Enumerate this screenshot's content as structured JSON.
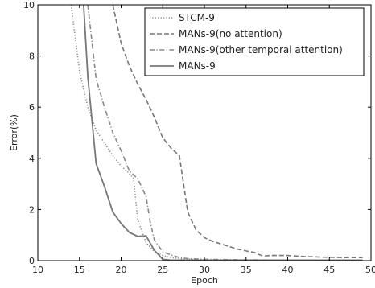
{
  "chart_data": {
    "type": "line",
    "xlabel": "Epoch",
    "ylabel": "Error(%)",
    "xlim": [
      10,
      50
    ],
    "ylim": [
      0,
      10
    ],
    "x_ticks": [
      10,
      15,
      20,
      25,
      30,
      35,
      40,
      45,
      50
    ],
    "y_ticks": [
      0,
      2,
      4,
      6,
      8,
      10
    ],
    "grid": false,
    "legend_position": "top-right",
    "series": [
      {
        "name": "STCM-9",
        "style": "dotted",
        "color": "#888888",
        "x": [
          14,
          15,
          16,
          17,
          18,
          19,
          20,
          21,
          21.5,
          22,
          23,
          24,
          25,
          26,
          27,
          28,
          29,
          30,
          32,
          35,
          40,
          45,
          49
        ],
        "y": [
          10,
          7.4,
          6.0,
          5.1,
          4.6,
          4.1,
          3.7,
          3.4,
          3.2,
          1.6,
          0.7,
          0.35,
          0.2,
          0.12,
          0.08,
          0.05,
          0.04,
          0.03,
          0.02,
          0.02,
          0.02,
          0.02,
          0.02
        ]
      },
      {
        "name": "MANs-9(no attention)",
        "style": "dashed",
        "color": "#777777",
        "x": [
          19,
          19.2,
          20,
          21,
          22,
          23,
          24,
          25,
          26,
          27,
          28,
          29,
          30,
          31,
          32,
          33,
          34,
          35,
          36,
          37,
          38,
          39,
          40,
          41,
          42,
          43,
          45,
          47,
          49
        ],
        "y": [
          10,
          9.7,
          8.5,
          7.6,
          6.9,
          6.3,
          5.6,
          4.8,
          4.4,
          4.1,
          1.9,
          1.2,
          0.9,
          0.75,
          0.65,
          0.55,
          0.45,
          0.38,
          0.32,
          0.18,
          0.2,
          0.2,
          0.2,
          0.18,
          0.16,
          0.15,
          0.13,
          0.12,
          0.12
        ]
      },
      {
        "name": "MANs-9(other temporal attention)",
        "style": "dashdot",
        "color": "#888888",
        "x": [
          16,
          17,
          18,
          19,
          20,
          21,
          22,
          23,
          23.5,
          24,
          25,
          26,
          27,
          28,
          30,
          35,
          40,
          45,
          49
        ],
        "y": [
          10,
          7.1,
          6.0,
          5.0,
          4.3,
          3.5,
          3.2,
          2.5,
          1.5,
          0.8,
          0.35,
          0.22,
          0.12,
          0.08,
          0.05,
          0.03,
          0.02,
          0.02,
          0.02
        ]
      },
      {
        "name": "MANs-9",
        "style": "solid",
        "color": "#777777",
        "x": [
          15.5,
          16,
          17,
          18,
          19,
          20,
          21,
          22,
          23,
          24,
          25,
          26,
          27,
          28,
          30,
          35,
          40,
          45,
          49
        ],
        "y": [
          10,
          7.2,
          3.8,
          2.9,
          1.9,
          1.45,
          1.1,
          0.95,
          0.97,
          0.4,
          0.05,
          0.02,
          0.02,
          0.02,
          0.02,
          0.02,
          0.02,
          0.02,
          0.02
        ]
      }
    ]
  }
}
